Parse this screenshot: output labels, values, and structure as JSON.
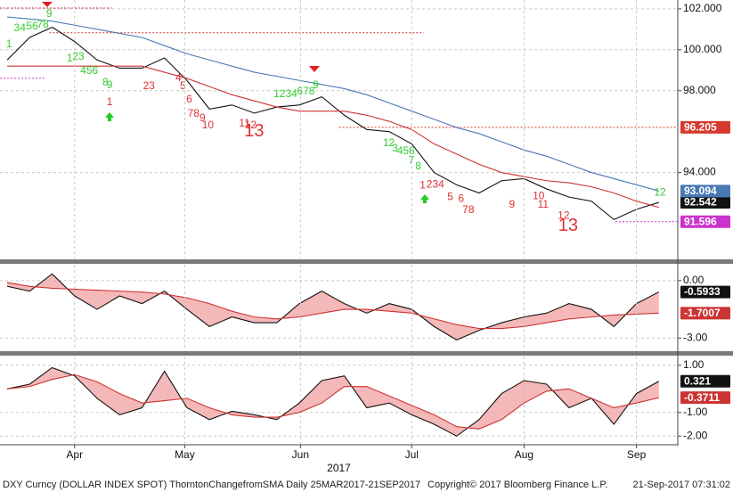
{
  "chart_data": [
    {
      "type": "line",
      "x": [
        0,
        1,
        2,
        3,
        4,
        5,
        6,
        7,
        8,
        9,
        10,
        11,
        12,
        13,
        14,
        15,
        16,
        17,
        18,
        19,
        20,
        21,
        22,
        23,
        24,
        25,
        26,
        27,
        28,
        29
      ],
      "xlim": [
        -0.32,
        29.84
      ],
      "ylim": [
        89.8,
        102.43
      ],
      "yticks": [
        {
          "value": 102,
          "label": "102.000"
        },
        {
          "value": 100,
          "label": "100.000"
        },
        {
          "value": 98,
          "label": "98.000"
        },
        {
          "value": 94,
          "label": "94.000"
        }
      ],
      "grid": true,
      "series": [
        {
          "name": "DXY",
          "color": "#111111",
          "label_box": true,
          "values": [
            99.5,
            100.6,
            101.1,
            100.4,
            99.5,
            99.1,
            99.1,
            99.6,
            98.5,
            97.1,
            97.3,
            96.9,
            97.2,
            97.3,
            97.7,
            96.8,
            96.1,
            96.0,
            95.4,
            94.0,
            93.4,
            93.0,
            93.6,
            93.7,
            93.2,
            92.8,
            92.6,
            91.7,
            92.2,
            92.542
          ]
        },
        {
          "name": "SMA short",
          "color": "#cc3333",
          "label_box": false,
          "values": [
            99.2,
            99.2,
            99.2,
            99.2,
            99.2,
            99.2,
            99.2,
            98.9,
            98.6,
            98.2,
            97.8,
            97.5,
            97.2,
            97.0,
            97.0,
            97.0,
            96.8,
            96.5,
            96.1,
            95.4,
            94.9,
            94.4,
            94.0,
            93.8,
            93.6,
            93.5,
            93.3,
            93.0,
            92.6,
            92.3
          ]
        },
        {
          "name": "SMA long",
          "color": "#4a78b5",
          "label_box": true,
          "values": [
            101.6,
            101.5,
            101.4,
            101.2,
            101.0,
            100.8,
            100.6,
            100.2,
            99.8,
            99.5,
            99.2,
            98.9,
            98.7,
            98.5,
            98.3,
            98.1,
            97.8,
            97.4,
            97.0,
            96.6,
            96.2,
            95.9,
            95.5,
            95.1,
            94.8,
            94.4,
            94.0,
            93.7,
            93.4,
            93.094
          ]
        }
      ],
      "levels": [
        {
          "value": 102.04,
          "from": -0.32,
          "to": 4.64,
          "color": "#cc3333",
          "label_box": false
        },
        {
          "value": 100.83,
          "from": 1.87,
          "to": 18.53,
          "color": "#cc3333",
          "label_box": false
        },
        {
          "value": 98.61,
          "from": -0.32,
          "to": 1.67,
          "color": "#cc33cc",
          "label_box": false
        },
        {
          "value": 96.205,
          "from": 14.76,
          "to": 29.84,
          "color": "#d63a2f",
          "label_box": true
        },
        {
          "value": 91.596,
          "from": 27.06,
          "to": 29.84,
          "color": "#cc33cc",
          "label_box": true
        }
      ],
      "annotations": [
        {
          "text": "1",
          "x": 0.08,
          "y": 100.26,
          "color": "#33cc33"
        },
        {
          "text": "34",
          "x": 0.56,
          "y": 101.04,
          "color": "#33cc33"
        },
        {
          "text": "56",
          "x": 1.11,
          "y": 101.13,
          "color": "#33cc33"
        },
        {
          "text": "78",
          "x": 1.59,
          "y": 101.22,
          "color": "#33cc33"
        },
        {
          "text": "9",
          "x": 1.87,
          "y": 101.74,
          "color": "#33cc33"
        },
        {
          "text": "1",
          "x": 2.78,
          "y": 99.57,
          "color": "#33cc33"
        },
        {
          "text": "23",
          "x": 3.17,
          "y": 99.65,
          "color": "#33cc33"
        },
        {
          "text": "456",
          "x": 3.65,
          "y": 98.96,
          "color": "#33cc33"
        },
        {
          "text": "8",
          "x": 4.37,
          "y": 98.39,
          "color": "#33cc33"
        },
        {
          "text": "9",
          "x": 4.56,
          "y": 98.26,
          "color": "#33cc33"
        },
        {
          "text": "1234",
          "x": 12.38,
          "y": 97.83,
          "color": "#33cc33"
        },
        {
          "text": "678",
          "x": 13.29,
          "y": 97.96,
          "color": "#33cc33"
        },
        {
          "text": "9",
          "x": 13.73,
          "y": 98.26,
          "color": "#33cc33"
        },
        {
          "text": "12",
          "x": 16.98,
          "y": 95.43,
          "color": "#33cc33"
        },
        {
          "text": "3",
          "x": 17.26,
          "y": 95.17,
          "color": "#33cc33"
        },
        {
          "text": "456",
          "x": 17.74,
          "y": 95.04,
          "color": "#33cc33"
        },
        {
          "text": "7",
          "x": 17.98,
          "y": 94.57,
          "color": "#33cc33"
        },
        {
          "text": "8",
          "x": 18.29,
          "y": 94.3,
          "color": "#33cc33"
        },
        {
          "text": "12",
          "x": 29.05,
          "y": 93.0,
          "color": "#33cc33"
        },
        {
          "text": "1",
          "x": 4.56,
          "y": 97.43,
          "color": "#e03030"
        },
        {
          "text": "23",
          "x": 6.31,
          "y": 98.22,
          "color": "#e03030"
        },
        {
          "text": "4",
          "x": 7.62,
          "y": 98.61,
          "color": "#e03030"
        },
        {
          "text": "5",
          "x": 7.82,
          "y": 98.22,
          "color": "#e03030"
        },
        {
          "text": "6",
          "x": 8.1,
          "y": 97.57,
          "color": "#e03030"
        },
        {
          "text": "78",
          "x": 8.29,
          "y": 96.87,
          "color": "#e03030"
        },
        {
          "text": "9",
          "x": 8.69,
          "y": 96.65,
          "color": "#e03030"
        },
        {
          "text": "10",
          "x": 8.93,
          "y": 96.3,
          "color": "#e03030"
        },
        {
          "text": "11",
          "x": 10.56,
          "y": 96.39,
          "color": "#e03030"
        },
        {
          "text": "12",
          "x": 10.83,
          "y": 96.3,
          "color": "#e03030"
        },
        {
          "text": "13",
          "x": 10.99,
          "y": 96.0,
          "color": "#e03030",
          "big": true
        },
        {
          "text": "1",
          "x": 18.49,
          "y": 93.35,
          "color": "#e03030"
        },
        {
          "text": "234",
          "x": 19.05,
          "y": 93.39,
          "color": "#e03030"
        },
        {
          "text": "5",
          "x": 19.72,
          "y": 92.78,
          "color": "#e03030"
        },
        {
          "text": "6",
          "x": 20.2,
          "y": 92.7,
          "color": "#e03030"
        },
        {
          "text": "78",
          "x": 20.52,
          "y": 92.17,
          "color": "#e03030"
        },
        {
          "text": "9",
          "x": 22.46,
          "y": 92.43,
          "color": "#e03030"
        },
        {
          "text": "10",
          "x": 23.65,
          "y": 92.83,
          "color": "#e03030"
        },
        {
          "text": "11",
          "x": 23.85,
          "y": 92.43,
          "color": "#e03030"
        },
        {
          "text": "12",
          "x": 24.76,
          "y": 91.87,
          "color": "#e03030"
        },
        {
          "text": "13",
          "x": 24.96,
          "y": 91.39,
          "color": "#e03030",
          "big": true
        }
      ]
    },
    {
      "type": "line",
      "x": [
        0,
        1,
        2,
        3,
        4,
        5,
        6,
        7,
        8,
        9,
        10,
        11,
        12,
        13,
        14,
        15,
        16,
        17,
        18,
        19,
        20,
        21,
        22,
        23,
        24,
        25,
        26,
        27,
        28,
        29
      ],
      "xlim": [
        -0.32,
        29.84
      ],
      "ylim": [
        -3.64,
        0.83
      ],
      "yticks": [
        {
          "value": 0,
          "label": "0.00"
        },
        {
          "value": -3,
          "label": "-3.00"
        }
      ],
      "grid": true,
      "fill": "#f2a0a0",
      "series": [
        {
          "name": "Change from SMA",
          "color": "#111111",
          "label_box": true,
          "values": [
            -0.3,
            -0.55,
            0.35,
            -0.8,
            -1.5,
            -0.8,
            -1.2,
            -0.55,
            -1.5,
            -2.4,
            -1.9,
            -2.2,
            -2.2,
            -1.2,
            -0.55,
            -1.2,
            -1.7,
            -1.2,
            -1.5,
            -2.4,
            -3.1,
            -2.6,
            -2.2,
            -1.9,
            -1.7,
            -1.2,
            -1.5,
            -2.4,
            -1.2,
            -0.5933
          ]
        },
        {
          "name": "Average",
          "color": "#cc3333",
          "label_box": true,
          "values": [
            -0.1,
            -0.3,
            -0.4,
            -0.45,
            -0.5,
            -0.55,
            -0.6,
            -0.7,
            -0.9,
            -1.2,
            -1.6,
            -1.9,
            -2.0,
            -1.9,
            -1.7,
            -1.5,
            -1.5,
            -1.6,
            -1.7,
            -2.0,
            -2.3,
            -2.5,
            -2.5,
            -2.4,
            -2.2,
            -2.0,
            -1.9,
            -1.8,
            -1.75,
            -1.7007
          ]
        }
      ]
    },
    {
      "type": "line",
      "x": [
        0,
        1,
        2,
        3,
        4,
        5,
        6,
        7,
        8,
        9,
        10,
        11,
        12,
        13,
        14,
        15,
        16,
        17,
        18,
        19,
        20,
        21,
        22,
        23,
        24,
        25,
        26,
        27,
        28,
        29
      ],
      "xlim": [
        -0.32,
        29.84
      ],
      "ylim": [
        -2.33,
        1.37
      ],
      "yticks": [
        {
          "value": 1,
          "label": "1.00"
        },
        {
          "value": -1,
          "label": "-1.00"
        },
        {
          "value": -2,
          "label": "-2.00"
        }
      ],
      "xticks": [
        {
          "value": 3,
          "label": "Apr"
        },
        {
          "value": 7.9,
          "label": "May"
        },
        {
          "value": 13.05,
          "label": "Jun"
        },
        {
          "value": 18,
          "label": "Jul"
        },
        {
          "value": 23,
          "label": "Aug"
        },
        {
          "value": 28,
          "label": "Sep"
        }
      ],
      "xlabel": "2017",
      "grid": true,
      "fill": "#f2a0a0",
      "series": [
        {
          "name": "Oscillator",
          "color": "#111111",
          "label_box": true,
          "values": [
            0,
            0.2,
            0.9,
            0.55,
            -0.4,
            -1.1,
            -0.8,
            0.75,
            -0.8,
            -1.3,
            -0.95,
            -1.1,
            -1.3,
            -0.6,
            0.35,
            0.55,
            -0.8,
            -0.6,
            -1.1,
            -1.5,
            -2.0,
            -1.3,
            -0.2,
            0.35,
            0.2,
            -0.8,
            -0.4,
            -1.5,
            -0.2,
            0.321
          ]
        },
        {
          "name": "Signal",
          "color": "#cc3333",
          "label_box": true,
          "values": [
            0,
            0.1,
            0.4,
            0.6,
            0.3,
            -0.2,
            -0.6,
            -0.5,
            -0.4,
            -0.8,
            -1.1,
            -1.2,
            -1.2,
            -1.0,
            -0.6,
            0.1,
            0.1,
            -0.3,
            -0.7,
            -1.1,
            -1.6,
            -1.7,
            -1.3,
            -0.6,
            -0.1,
            0,
            -0.4,
            -0.8,
            -0.6,
            -0.3711
          ]
        }
      ]
    }
  ],
  "footer": {
    "source": "DXY Curncy (DOLLAR INDEX SPOT) ThorntonChangefromSMA  Daily 25MAR2017-21SEP2017",
    "copyright": "Copyright© 2017 Bloomberg Finance L.P.",
    "timestamp": "21-Sep-2017 07:31:02"
  }
}
